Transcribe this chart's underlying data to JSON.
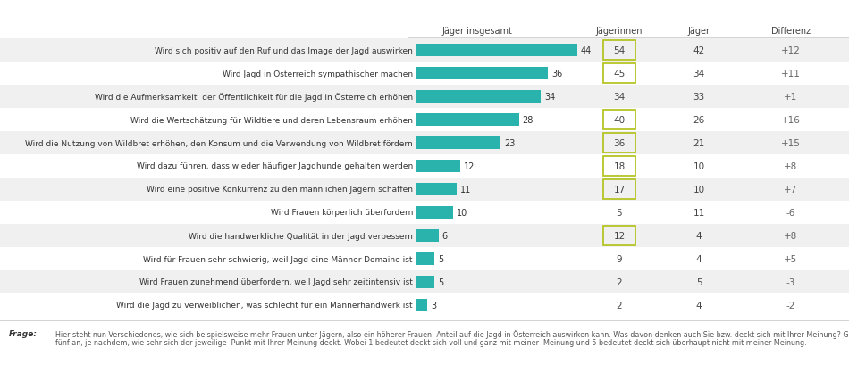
{
  "rows": [
    {
      "label": "Wird sich positiv auf den Ruf und das Image der Jagd auswirken",
      "bar": 44,
      "jaegerinnen": 54,
      "jaeger": 42,
      "diff": "+12",
      "highlight": true,
      "shaded": true
    },
    {
      "label": "Wird Jagd in Österreich sympathischer machen",
      "bar": 36,
      "jaegerinnen": 45,
      "jaeger": 34,
      "diff": "+11",
      "highlight": true,
      "shaded": false
    },
    {
      "label": "Wird die Aufmerksamkeit  der Öffentlichkeit für die Jagd in Österreich erhöhen",
      "bar": 34,
      "jaegerinnen": 34,
      "jaeger": 33,
      "diff": "+1",
      "highlight": false,
      "shaded": true
    },
    {
      "label": "Wird die Wertschätzung für Wildtiere und deren Lebensraum erhöhen",
      "bar": 28,
      "jaegerinnen": 40,
      "jaeger": 26,
      "diff": "+16",
      "highlight": true,
      "shaded": false
    },
    {
      "label": "Wird die Nutzung von Wildbret erhöhen, den Konsum und die Verwendung von Wildbret fördern",
      "bar": 23,
      "jaegerinnen": 36,
      "jaeger": 21,
      "diff": "+15",
      "highlight": true,
      "shaded": true
    },
    {
      "label": "Wird dazu führen, dass wieder häufiger Jagdhunde gehalten werden",
      "bar": 12,
      "jaegerinnen": 18,
      "jaeger": 10,
      "diff": "+8",
      "highlight": true,
      "shaded": false
    },
    {
      "label": "Wird eine positive Konkurrenz zu den männlichen Jägern schaffen",
      "bar": 11,
      "jaegerinnen": 17,
      "jaeger": 10,
      "diff": "+7",
      "highlight": true,
      "shaded": true
    },
    {
      "label": "Wird Frauen körperlich überfordern",
      "bar": 10,
      "jaegerinnen": 5,
      "jaeger": 11,
      "diff": "-6",
      "highlight": false,
      "shaded": false
    },
    {
      "label": "Wird die handwerkliche Qualität in der Jagd verbessern",
      "bar": 6,
      "jaegerinnen": 12,
      "jaeger": 4,
      "diff": "+8",
      "highlight": true,
      "shaded": true
    },
    {
      "label": "Wird für Frauen sehr schwierig, weil Jagd eine Männer-Domaine ist",
      "bar": 5,
      "jaegerinnen": 9,
      "jaeger": 4,
      "diff": "+5",
      "highlight": false,
      "shaded": false
    },
    {
      "label": "Wird Frauen zunehmend überfordern, weil Jagd sehr zeitintensiv ist",
      "bar": 5,
      "jaegerinnen": 2,
      "jaeger": 5,
      "diff": "-3",
      "highlight": false,
      "shaded": true
    },
    {
      "label": "Wird die Jagd zu verweiblichen, was schlecht für ein Männerhandwerk ist",
      "bar": 3,
      "jaegerinnen": 2,
      "jaeger": 4,
      "diff": "-2",
      "highlight": false,
      "shaded": false
    }
  ],
  "bar_color": "#2ab3ac",
  "bar_max_val": 44,
  "col_header_jaeger_insgesamt": "Jäger insgesamt",
  "col_header_jaegerinnen": "Jägerinnen",
  "col_header_jaeger": "Jäger",
  "col_header_differenz": "Differenz",
  "frage_label": "Frage:",
  "frage_line1": "Hier steht nun Verschiedenes, wie sich beispielsweise mehr Frauen unter Jägern, also ein höherer Frauen- Anteil auf die Jagd in Österreich auswirken kann. Was davon denken auch Sie bzw. deckt sich mit Ihrer Meinung? Geben Sie bitte Schulnoten von eins bis",
  "frage_line2": "fünf an, je nachdem, wie sehr sich der jeweilige  Punkt mit Ihrer Meinung deckt. Wobei 1 bedeutet deckt sich voll und ganz mit meiner  Meinung und 5 bedeutet deckt sich überhaupt nicht mit meiner Meinung.",
  "highlight_box_color": "#b5c424",
  "shaded_row_color": "#f0f0f0",
  "bg_color": "#ffffff"
}
